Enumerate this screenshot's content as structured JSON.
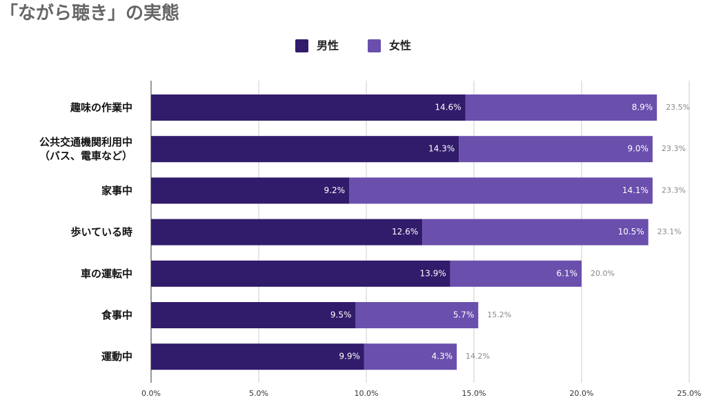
{
  "chart_data": {
    "type": "stacked-bar-horizontal",
    "title": "「ながら聴き」の実態",
    "categories": [
      "趣味の作業中",
      "公共交通機関利用中\n（バス、電車など）",
      "家事中",
      "歩いている時",
      "車の運転中",
      "食事中",
      "運動中"
    ],
    "series": [
      {
        "name": "男性",
        "color": "#311b6b",
        "values": [
          14.6,
          14.3,
          9.2,
          12.6,
          13.9,
          9.5,
          9.9
        ],
        "value_labels": [
          "14.6%",
          "14.3%",
          "9.2%",
          "12.6%",
          "13.9%",
          "9.5%",
          "9.9%"
        ]
      },
      {
        "name": "女性",
        "color": "#6a4fad",
        "values": [
          8.9,
          9.0,
          14.1,
          10.5,
          6.1,
          5.7,
          4.3
        ],
        "value_labels": [
          "8.9%",
          "9.0%",
          "14.1%",
          "10.5%",
          "6.1%",
          "5.7%",
          "4.3%"
        ]
      }
    ],
    "totals": [
      23.5,
      23.3,
      23.3,
      23.1,
      20.0,
      15.2,
      14.2
    ],
    "total_labels": [
      "23.5%",
      "23.3%",
      "23.3%",
      "23.1%",
      "20.0%",
      "15.2%",
      "14.2%"
    ],
    "xlim": [
      0,
      25
    ],
    "xticks": [
      {
        "value": 0,
        "label": "0.0%"
      },
      {
        "value": 5,
        "label": "5.0%"
      },
      {
        "value": 10,
        "label": "10.0%"
      },
      {
        "value": 15,
        "label": "15.0%"
      },
      {
        "value": 20,
        "label": "20.0%"
      },
      {
        "value": 25,
        "label": "25.0%"
      }
    ],
    "grid": true
  }
}
